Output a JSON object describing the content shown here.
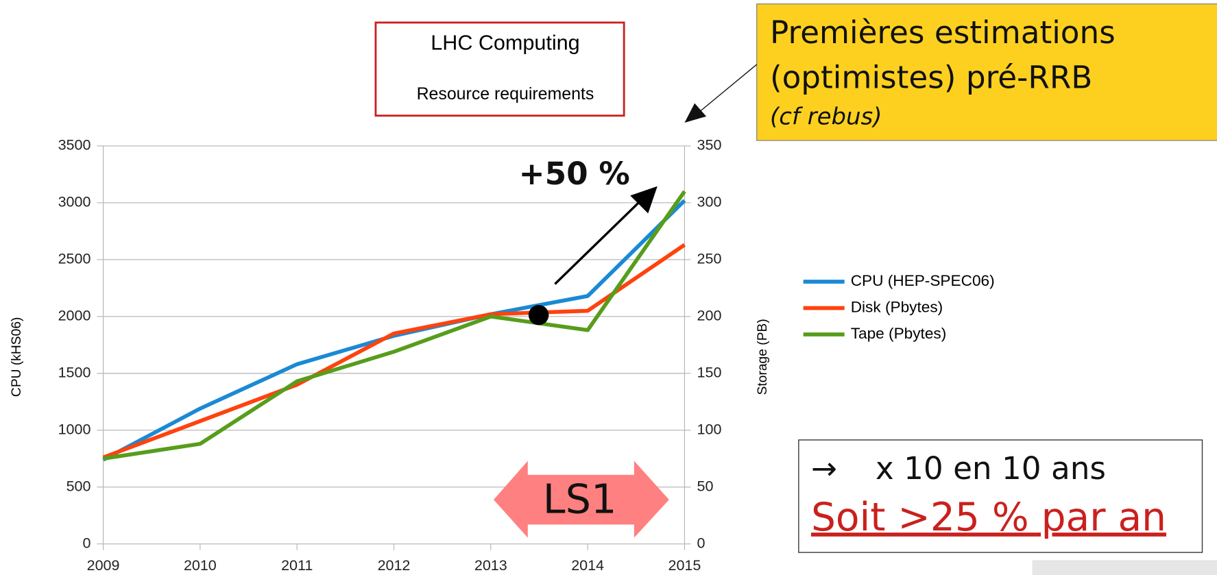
{
  "chart_data": {
    "type": "line",
    "title": "LHC Computing",
    "subtitle": "Resource requirements",
    "ylabel": "CPU (kHS06)",
    "y2label": "Storage (PB)",
    "x": [
      2009,
      2010,
      2011,
      2012,
      2013,
      2014,
      2015
    ],
    "xlim": [
      2009,
      2015
    ],
    "xticks": [
      2009,
      2010,
      2011,
      2012,
      2013,
      2014,
      2015
    ],
    "ylim": [
      0,
      3500
    ],
    "yticks": [
      0,
      500,
      1000,
      1500,
      2000,
      2500,
      3000,
      3500
    ],
    "y2lim": [
      0,
      350
    ],
    "y2ticks": [
      0,
      50,
      100,
      150,
      200,
      250,
      300,
      350
    ],
    "grid": true,
    "legend": "right",
    "series": [
      {
        "name": "CPU (HEP-SPEC06)",
        "color": "#1a8ad4",
        "values": [
          740,
          1190,
          1580,
          1830,
          2020,
          2180,
          3020
        ]
      },
      {
        "name": "Disk (Pbytes)",
        "color": "#ff420e",
        "axis": "y2",
        "values": [
          76,
          108,
          140,
          185,
          202,
          205,
          263
        ]
      },
      {
        "name": "Tape (Pbytes)",
        "color": "#579d1c",
        "axis": "y2",
        "values": [
          75,
          88,
          143,
          169,
          200,
          188,
          310
        ]
      }
    ],
    "annotations": {
      "estimate": [
        "Premières estimations",
        "(optimistes) pré-RRB",
        "(cf rebus)"
      ],
      "growth": "+50 %",
      "period": "LS1",
      "arrow_symbol": "→",
      "summary": "x 10 en 10 ans",
      "conclusion": "Soit >25 % par an"
    }
  }
}
